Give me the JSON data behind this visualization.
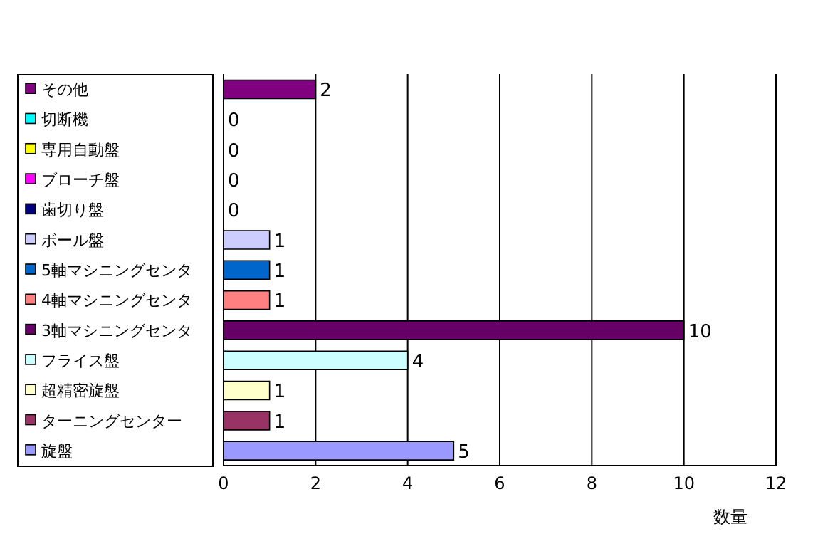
{
  "chart_data": {
    "type": "bar",
    "orientation": "horizontal",
    "xlabel": "数量",
    "categories": [
      "その他",
      "切断機",
      "専用自動盤",
      "ブローチ盤",
      "歯切り盤",
      "ボール盤",
      "5軸マシニングセンタ",
      "4軸マシニングセンタ",
      "3軸マシニングセンタ",
      "フライス盤",
      "超精密旋盤",
      "ターニングセンター",
      "旋盤"
    ],
    "values": [
      2,
      0,
      0,
      0,
      0,
      1,
      1,
      1,
      10,
      4,
      1,
      1,
      5
    ],
    "colors": [
      "#800080",
      "#00ffff",
      "#ffff00",
      "#ff00ff",
      "#000080",
      "#ccccff",
      "#0066cc",
      "#ff8080",
      "#660066",
      "#ccffff",
      "#ffffcc",
      "#993366",
      "#9999ff"
    ],
    "xlim": [
      0,
      12
    ],
    "xticks": [
      0,
      2,
      4,
      6,
      8,
      10,
      12
    ],
    "grid": "x",
    "data_labels": true
  }
}
